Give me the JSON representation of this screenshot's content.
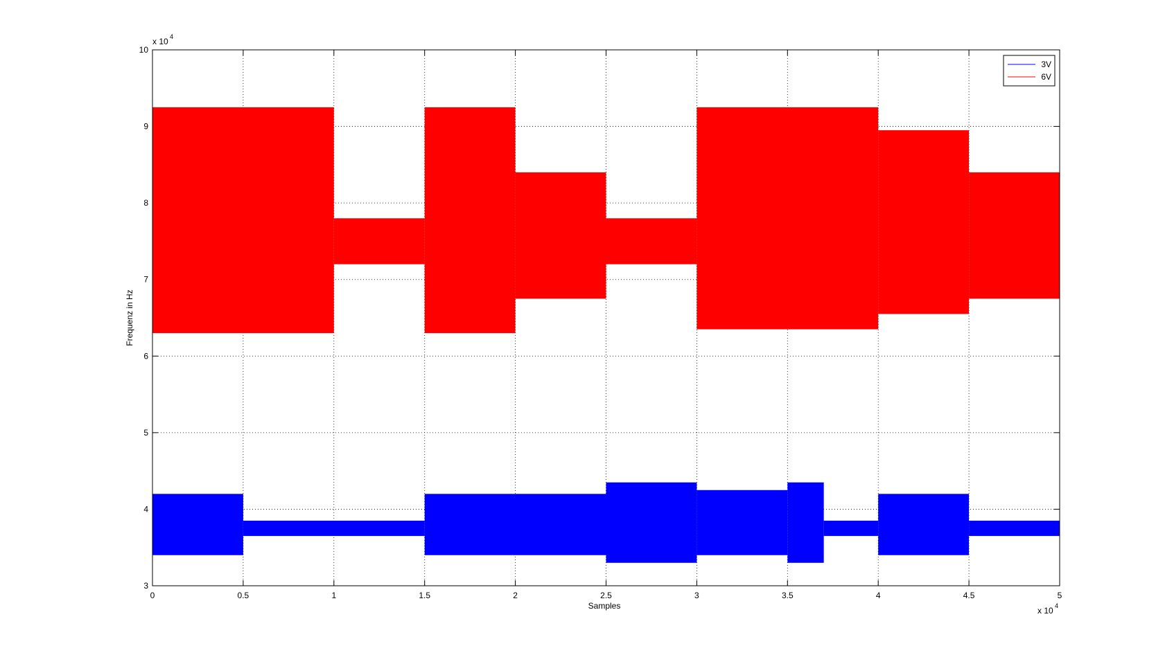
{
  "chart_data": {
    "type": "range",
    "xlabel": "Samples",
    "ylabel": "Frequenz in Hz",
    "x_multiplier": {
      "base": "x 10",
      "power": "4"
    },
    "y_multiplier": {
      "base": "x 10",
      "power": "4"
    },
    "xlim": [
      0,
      50000
    ],
    "ylim": [
      30000,
      100000
    ],
    "xticks": [
      0,
      {
        "value": 5000,
        "label": "0.5"
      },
      {
        "value": 10000,
        "label": "1"
      },
      {
        "value": 15000,
        "label": "1.5"
      },
      {
        "value": 20000,
        "label": "2"
      },
      {
        "value": 25000,
        "label": "2.5"
      },
      {
        "value": 30000,
        "label": "3"
      },
      {
        "value": 35000,
        "label": "3.5"
      },
      {
        "value": 40000,
        "label": "4"
      },
      {
        "value": 45000,
        "label": "4.5"
      },
      {
        "value": 50000,
        "label": "5"
      }
    ],
    "yticks": [
      {
        "value": 30000,
        "label": "3"
      },
      {
        "value": 40000,
        "label": "4"
      },
      {
        "value": 50000,
        "label": "5"
      },
      {
        "value": 60000,
        "label": "6"
      },
      {
        "value": 70000,
        "label": "7"
      },
      {
        "value": 80000,
        "label": "8"
      },
      {
        "value": 90000,
        "label": "9"
      },
      {
        "value": 100000,
        "label": "10"
      }
    ],
    "grid": true,
    "legend": "upper right",
    "series": [
      {
        "name": "3V",
        "color": "#0000ff",
        "bins": [
          0,
          5000,
          15000,
          25000,
          30000,
          35000,
          37000,
          40000,
          45000,
          50000
        ],
        "high": [
          42000,
          38500,
          42000,
          43500,
          42500,
          43500,
          38500,
          42000,
          38500
        ],
        "low": [
          34000,
          36500,
          34000,
          33000,
          34000,
          33000,
          36500,
          34000,
          36500
        ]
      },
      {
        "name": "6V",
        "color": "#ff0000",
        "bins": [
          0,
          10000,
          15000,
          20000,
          25000,
          30000,
          40000,
          45000,
          50000
        ],
        "high": [
          92500,
          78000,
          92500,
          84000,
          78000,
          92500,
          89500,
          84000
        ],
        "low": [
          63000,
          72000,
          63000,
          67500,
          72000,
          63500,
          65500,
          67500
        ]
      }
    ]
  }
}
